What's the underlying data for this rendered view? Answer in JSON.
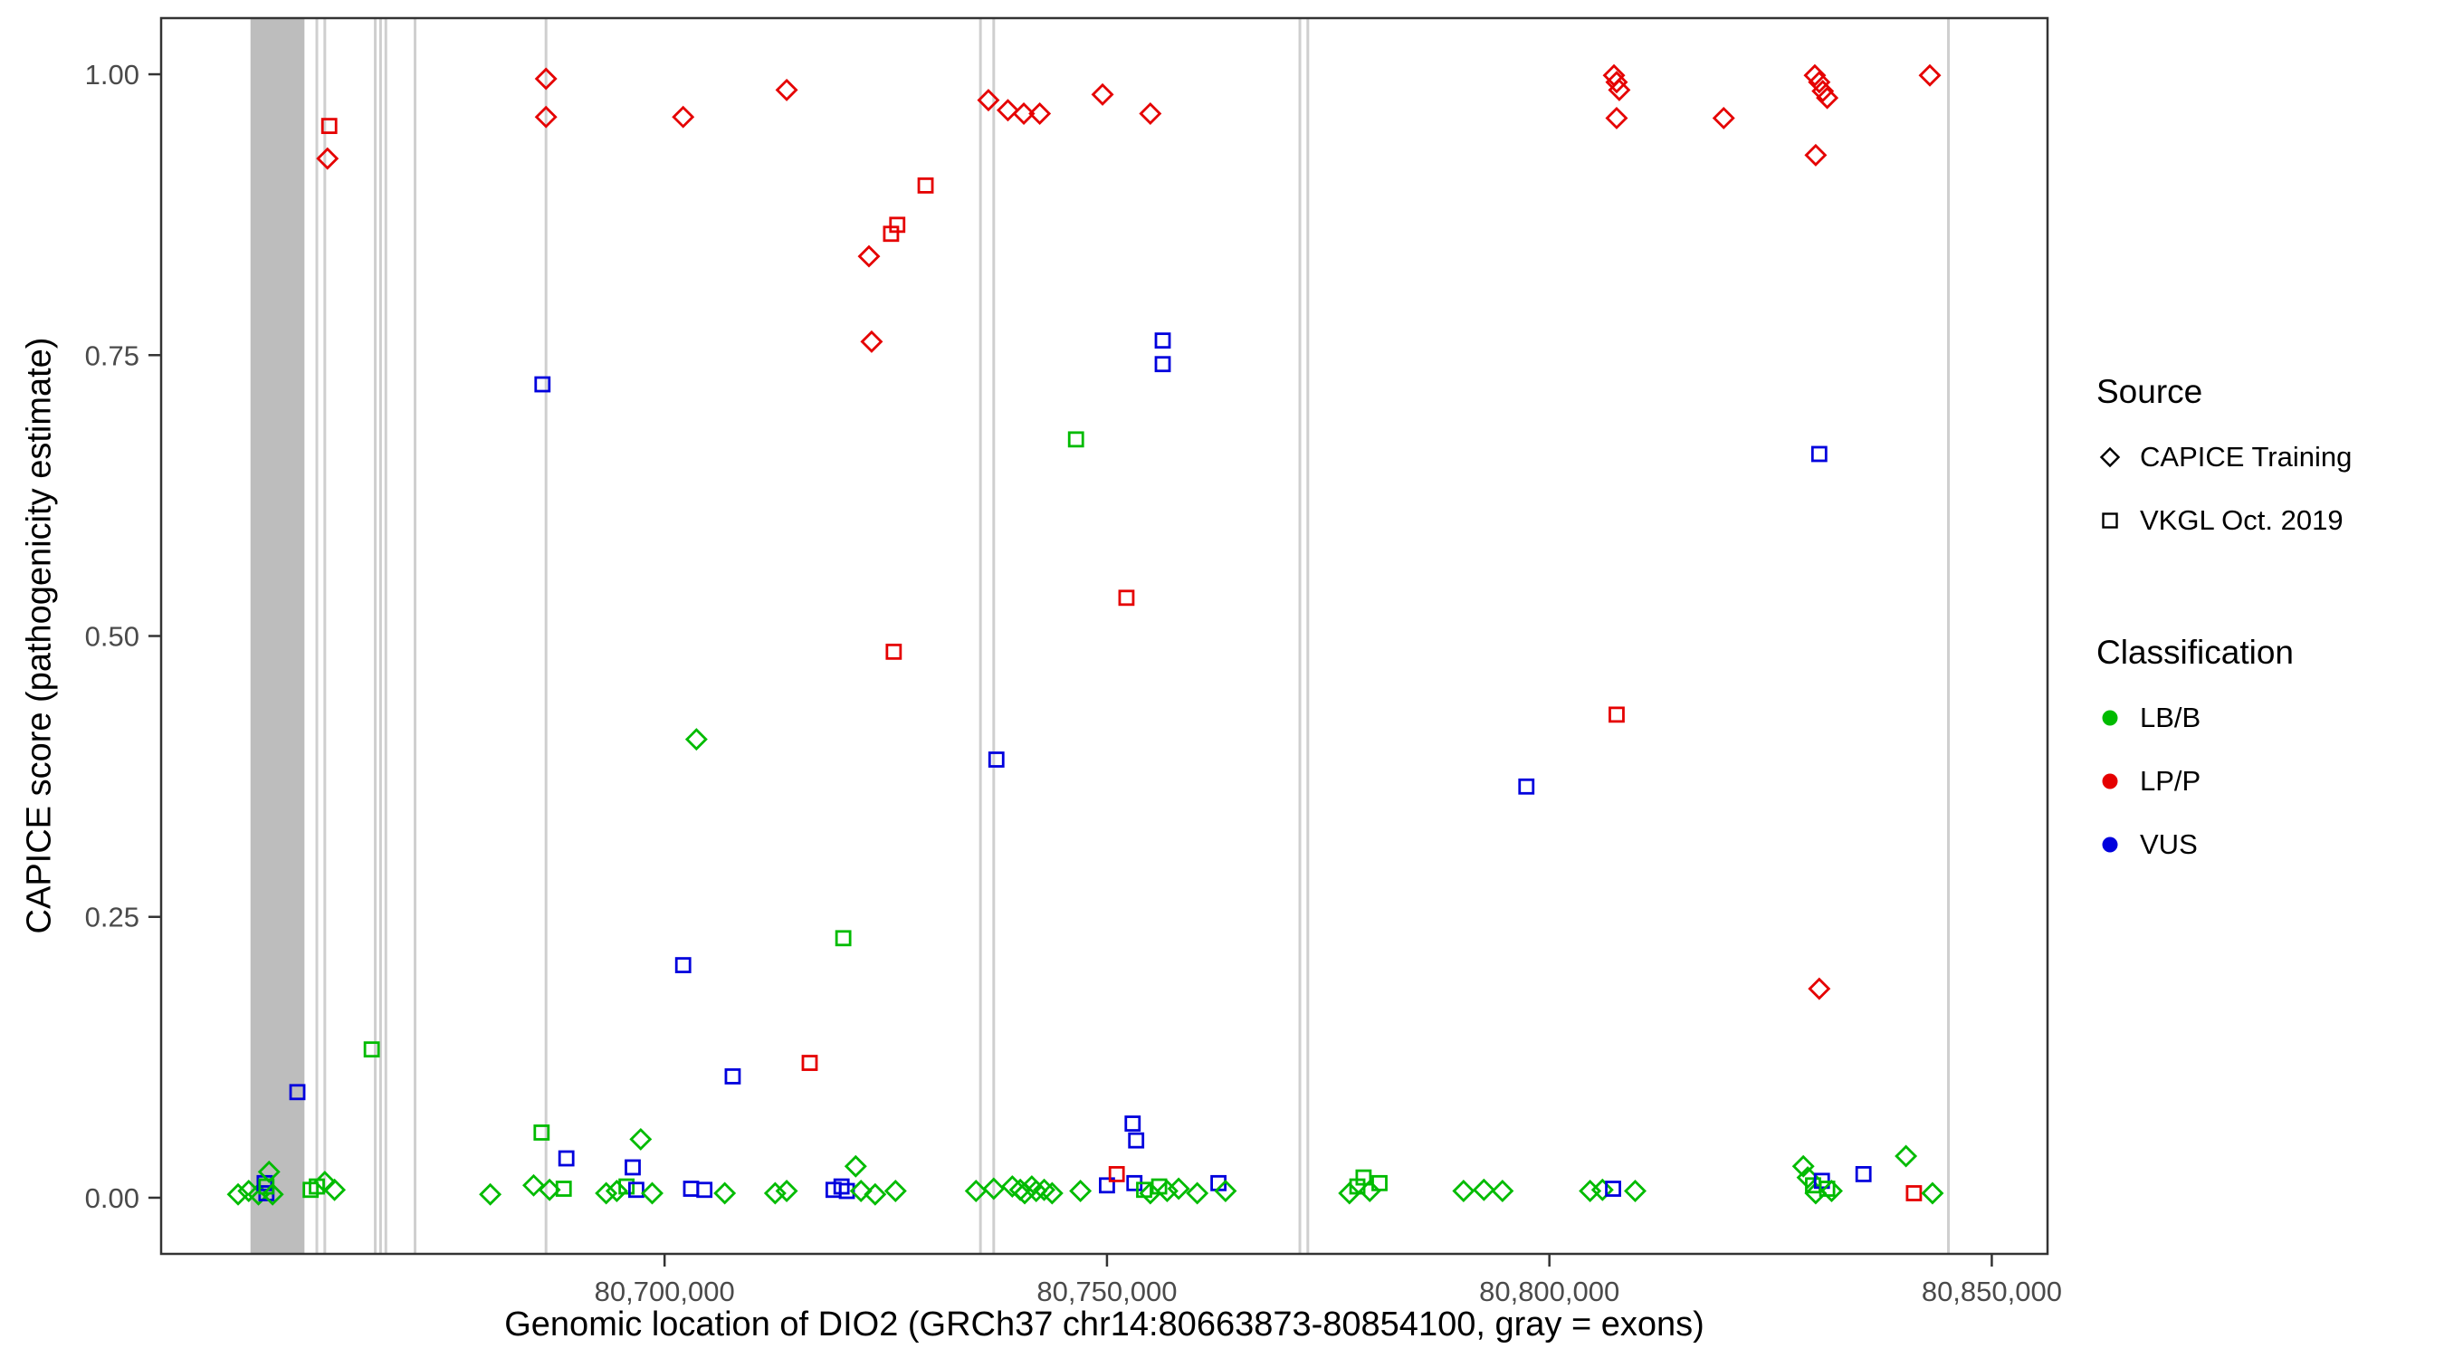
{
  "chart_data": {
    "type": "scatter",
    "title": "",
    "xlabel": "Genomic location of DIO2 (GRCh37 chr14:80663873-80854100, gray = exons)",
    "ylabel": "CAPICE score (pathogenicity estimate)",
    "xlim": [
      80643100,
      80856300
    ],
    "ylim": [
      -0.05,
      1.05
    ],
    "grid": "off",
    "legend_position": "right",
    "x_ticks": [
      {
        "value": 80700000,
        "label": "80,700,000"
      },
      {
        "value": 80750000,
        "label": "80,750,000"
      },
      {
        "value": 80800000,
        "label": "80,800,000"
      },
      {
        "value": 80850000,
        "label": "80,850,000"
      }
    ],
    "y_ticks": [
      {
        "value": 0.0,
        "label": "0.00"
      },
      {
        "value": 0.25,
        "label": "0.25"
      },
      {
        "value": 0.5,
        "label": "0.50"
      },
      {
        "value": 0.75,
        "label": "0.75"
      },
      {
        "value": 1.0,
        "label": "1.00"
      }
    ],
    "exon_band": {
      "start": 80653200,
      "end": 80659300
    },
    "exon_lines": [
      80660700,
      80661600,
      80667300,
      80667900,
      80668500,
      80671800,
      80686600,
      80735700,
      80737200,
      80771800,
      80772700,
      80845100
    ],
    "shape_codes": {
      "d": "CAPICE Training (open diamond)",
      "q": "VKGL Oct. 2019 (open square)"
    },
    "class_codes": {
      "g": "LB/B",
      "r": "LP/P",
      "b": "VUS"
    },
    "points": [
      [
        80651800,
        0.003,
        "d",
        "g"
      ],
      [
        80653000,
        0.006,
        "d",
        "g"
      ],
      [
        80654100,
        0.003,
        "d",
        "g"
      ],
      [
        80654800,
        0.013,
        "q",
        "b"
      ],
      [
        80655000,
        0.004,
        "q",
        "b"
      ],
      [
        80655000,
        0.01,
        "q",
        "g"
      ],
      [
        80655300,
        0.023,
        "d",
        "g"
      ],
      [
        80655700,
        0.003,
        "d",
        "g"
      ],
      [
        80658500,
        0.094,
        "q",
        "b"
      ],
      [
        80660000,
        0.007,
        "q",
        "g"
      ],
      [
        80660700,
        0.01,
        "q",
        "g"
      ],
      [
        80661600,
        0.014,
        "d",
        "g"
      ],
      [
        80662700,
        0.007,
        "d",
        "g"
      ],
      [
        80662100,
        0.954,
        "q",
        "r"
      ],
      [
        80661900,
        0.925,
        "d",
        "r"
      ],
      [
        80666900,
        0.132,
        "q",
        "g"
      ],
      [
        80680300,
        0.003,
        "d",
        "g"
      ],
      [
        80686600,
        0.996,
        "d",
        "r"
      ],
      [
        80686600,
        0.962,
        "d",
        "r"
      ],
      [
        80686200,
        0.724,
        "q",
        "b"
      ],
      [
        80686100,
        0.058,
        "q",
        "g"
      ],
      [
        80685200,
        0.011,
        "d",
        "g"
      ],
      [
        80687000,
        0.007,
        "d",
        "g"
      ],
      [
        80688900,
        0.035,
        "q",
        "b"
      ],
      [
        80688600,
        0.008,
        "q",
        "g"
      ],
      [
        80693400,
        0.004,
        "d",
        "g"
      ],
      [
        80694600,
        0.006,
        "d",
        "g"
      ],
      [
        80695700,
        0.01,
        "q",
        "g"
      ],
      [
        80696400,
        0.027,
        "q",
        "b"
      ],
      [
        80696800,
        0.007,
        "q",
        "b"
      ],
      [
        80697300,
        0.052,
        "d",
        "g"
      ],
      [
        80698600,
        0.004,
        "d",
        "g"
      ],
      [
        80702100,
        0.962,
        "d",
        "r"
      ],
      [
        80702100,
        0.207,
        "q",
        "b"
      ],
      [
        80703600,
        0.408,
        "d",
        "g"
      ],
      [
        80703000,
        0.008,
        "q",
        "b"
      ],
      [
        80704500,
        0.007,
        "q",
        "b"
      ],
      [
        80706800,
        0.004,
        "d",
        "g"
      ],
      [
        80707700,
        0.108,
        "q",
        "b"
      ],
      [
        80712500,
        0.004,
        "d",
        "g"
      ],
      [
        80713800,
        0.006,
        "d",
        "g"
      ],
      [
        80713800,
        0.986,
        "d",
        "r"
      ],
      [
        80716400,
        0.12,
        "q",
        "r"
      ],
      [
        80719100,
        0.007,
        "q",
        "b"
      ],
      [
        80720000,
        0.01,
        "q",
        "b"
      ],
      [
        80720600,
        0.006,
        "q",
        "b"
      ],
      [
        80720200,
        0.231,
        "q",
        "g"
      ],
      [
        80721600,
        0.028,
        "d",
        "g"
      ],
      [
        80722200,
        0.006,
        "d",
        "g"
      ],
      [
        80723100,
        0.838,
        "d",
        "r"
      ],
      [
        80723400,
        0.762,
        "d",
        "r"
      ],
      [
        80723800,
        0.003,
        "d",
        "g"
      ],
      [
        80725600,
        0.858,
        "q",
        "r"
      ],
      [
        80726300,
        0.866,
        "q",
        "r"
      ],
      [
        80725900,
        0.486,
        "q",
        "r"
      ],
      [
        80726100,
        0.006,
        "d",
        "g"
      ],
      [
        80729500,
        0.901,
        "q",
        "r"
      ],
      [
        80735200,
        0.006,
        "d",
        "g"
      ],
      [
        80736600,
        0.977,
        "d",
        "r"
      ],
      [
        80737200,
        0.008,
        "d",
        "g"
      ],
      [
        80737500,
        0.39,
        "q",
        "b"
      ],
      [
        80738800,
        0.968,
        "d",
        "r"
      ],
      [
        80739300,
        0.01,
        "d",
        "g"
      ],
      [
        80740200,
        0.007,
        "d",
        "g"
      ],
      [
        80740600,
        0.965,
        "d",
        "r"
      ],
      [
        80740700,
        0.004,
        "d",
        "g"
      ],
      [
        80741500,
        0.01,
        "d",
        "g"
      ],
      [
        80742000,
        0.006,
        "d",
        "g"
      ],
      [
        80742400,
        0.965,
        "d",
        "r"
      ],
      [
        80742900,
        0.007,
        "d",
        "g"
      ],
      [
        80743800,
        0.004,
        "d",
        "g"
      ],
      [
        80746500,
        0.675,
        "q",
        "g"
      ],
      [
        80747000,
        0.006,
        "d",
        "g"
      ],
      [
        80749500,
        0.982,
        "d",
        "r"
      ],
      [
        80750000,
        0.011,
        "q",
        "b"
      ],
      [
        80751100,
        0.021,
        "q",
        "r"
      ],
      [
        80752200,
        0.534,
        "q",
        "r"
      ],
      [
        80752900,
        0.066,
        "q",
        "b"
      ],
      [
        80753300,
        0.051,
        "q",
        "b"
      ],
      [
        80753100,
        0.013,
        "q",
        "b"
      ],
      [
        80754200,
        0.007,
        "q",
        "g"
      ],
      [
        80754900,
        0.004,
        "d",
        "g"
      ],
      [
        80754900,
        0.965,
        "d",
        "r"
      ],
      [
        80755900,
        0.01,
        "q",
        "g"
      ],
      [
        80756300,
        0.763,
        "q",
        "b"
      ],
      [
        80756300,
        0.742,
        "q",
        "b"
      ],
      [
        80756800,
        0.006,
        "d",
        "g"
      ],
      [
        80758100,
        0.008,
        "d",
        "g"
      ],
      [
        80760200,
        0.004,
        "d",
        "g"
      ],
      [
        80762600,
        0.013,
        "q",
        "b"
      ],
      [
        80763400,
        0.006,
        "d",
        "g"
      ],
      [
        80777400,
        0.004,
        "d",
        "g"
      ],
      [
        80778300,
        0.01,
        "q",
        "g"
      ],
      [
        80779000,
        0.018,
        "q",
        "g"
      ],
      [
        80779700,
        0.006,
        "d",
        "g"
      ],
      [
        80780800,
        0.013,
        "q",
        "g"
      ],
      [
        80790300,
        0.006,
        "d",
        "g"
      ],
      [
        80792600,
        0.007,
        "d",
        "g"
      ],
      [
        80794700,
        0.006,
        "d",
        "g"
      ],
      [
        80797400,
        0.366,
        "q",
        "b"
      ],
      [
        80804600,
        0.006,
        "d",
        "g"
      ],
      [
        80806000,
        0.007,
        "d",
        "g"
      ],
      [
        80807200,
        0.008,
        "q",
        "b"
      ],
      [
        80809700,
        0.006,
        "d",
        "g"
      ],
      [
        80807300,
        0.999,
        "d",
        "r"
      ],
      [
        80807600,
        0.993,
        "d",
        "r"
      ],
      [
        80807900,
        0.986,
        "d",
        "r"
      ],
      [
        80807600,
        0.961,
        "d",
        "r"
      ],
      [
        80807600,
        0.43,
        "q",
        "r"
      ],
      [
        80819700,
        0.961,
        "d",
        "r"
      ],
      [
        80830000,
        0.999,
        "d",
        "r"
      ],
      [
        80830500,
        0.993,
        "d",
        "r"
      ],
      [
        80830900,
        0.985,
        "d",
        "r"
      ],
      [
        80831400,
        0.979,
        "d",
        "r"
      ],
      [
        80830100,
        0.928,
        "d",
        "r"
      ],
      [
        80830500,
        0.662,
        "q",
        "b"
      ],
      [
        80830500,
        0.186,
        "d",
        "r"
      ],
      [
        80828700,
        0.028,
        "d",
        "g"
      ],
      [
        80829200,
        0.018,
        "d",
        "g"
      ],
      [
        80829800,
        0.011,
        "q",
        "g"
      ],
      [
        80830100,
        0.004,
        "d",
        "g"
      ],
      [
        80830800,
        0.015,
        "q",
        "b"
      ],
      [
        80831400,
        0.008,
        "q",
        "g"
      ],
      [
        80831900,
        0.006,
        "d",
        "g"
      ],
      [
        80835500,
        0.021,
        "q",
        "b"
      ],
      [
        80840300,
        0.037,
        "d",
        "g"
      ],
      [
        80841200,
        0.004,
        "q",
        "r"
      ],
      [
        80843300,
        0.004,
        "d",
        "g"
      ],
      [
        80843000,
        0.999,
        "d",
        "r"
      ]
    ]
  },
  "colors": {
    "g": "#00BB00",
    "r": "#E50000",
    "b": "#0000DD",
    "exon_band": "#BDBDBD",
    "exon_line": "#CFCFCF",
    "panel_border": "#333333",
    "tick": "#333333",
    "tick_label": "#4a4a4a"
  },
  "legend": {
    "source": {
      "title": "Source",
      "items": [
        {
          "label": "CAPICE Training",
          "shape": "diamond"
        },
        {
          "label": "VKGL Oct. 2019",
          "shape": "square"
        }
      ]
    },
    "classification": {
      "title": "Classification",
      "items": [
        {
          "label": "LB/B",
          "color": "#00BB00"
        },
        {
          "label": "LP/P",
          "color": "#E50000"
        },
        {
          "label": "VUS",
          "color": "#0000DD"
        }
      ]
    }
  }
}
